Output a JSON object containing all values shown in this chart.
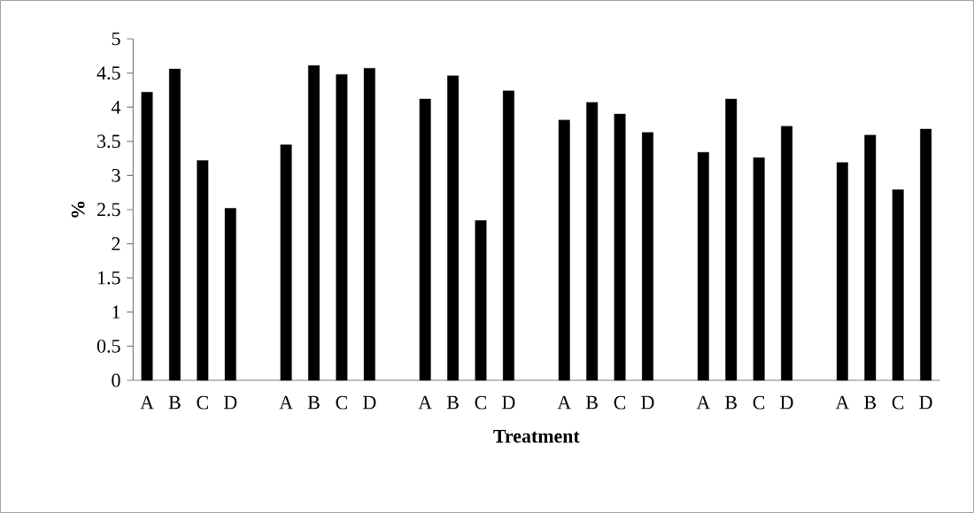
{
  "chart_data": {
    "type": "bar",
    "xlabel": "Treatment",
    "ylabel": "%",
    "categories": [
      "A",
      "B",
      "C",
      "D",
      null,
      "A",
      "B",
      "C",
      "D",
      null,
      "A",
      "B",
      "C",
      "D",
      null,
      "A",
      "B",
      "C",
      "D",
      null,
      "A",
      "B",
      "C",
      "D",
      null,
      "A",
      "B",
      "C",
      "D"
    ],
    "values": [
      4.22,
      4.56,
      3.22,
      2.52,
      null,
      3.45,
      4.61,
      4.48,
      4.57,
      null,
      4.12,
      4.46,
      2.34,
      4.24,
      null,
      3.81,
      4.07,
      3.9,
      3.63,
      null,
      3.34,
      4.12,
      3.26,
      3.72,
      null,
      3.19,
      3.59,
      2.79,
      3.68
    ],
    "color": "#000000",
    "ylim": [
      0,
      5
    ],
    "yticks": [
      0,
      0.5,
      1,
      1.5,
      2,
      2.5,
      3,
      3.5,
      4,
      4.5,
      5
    ]
  }
}
